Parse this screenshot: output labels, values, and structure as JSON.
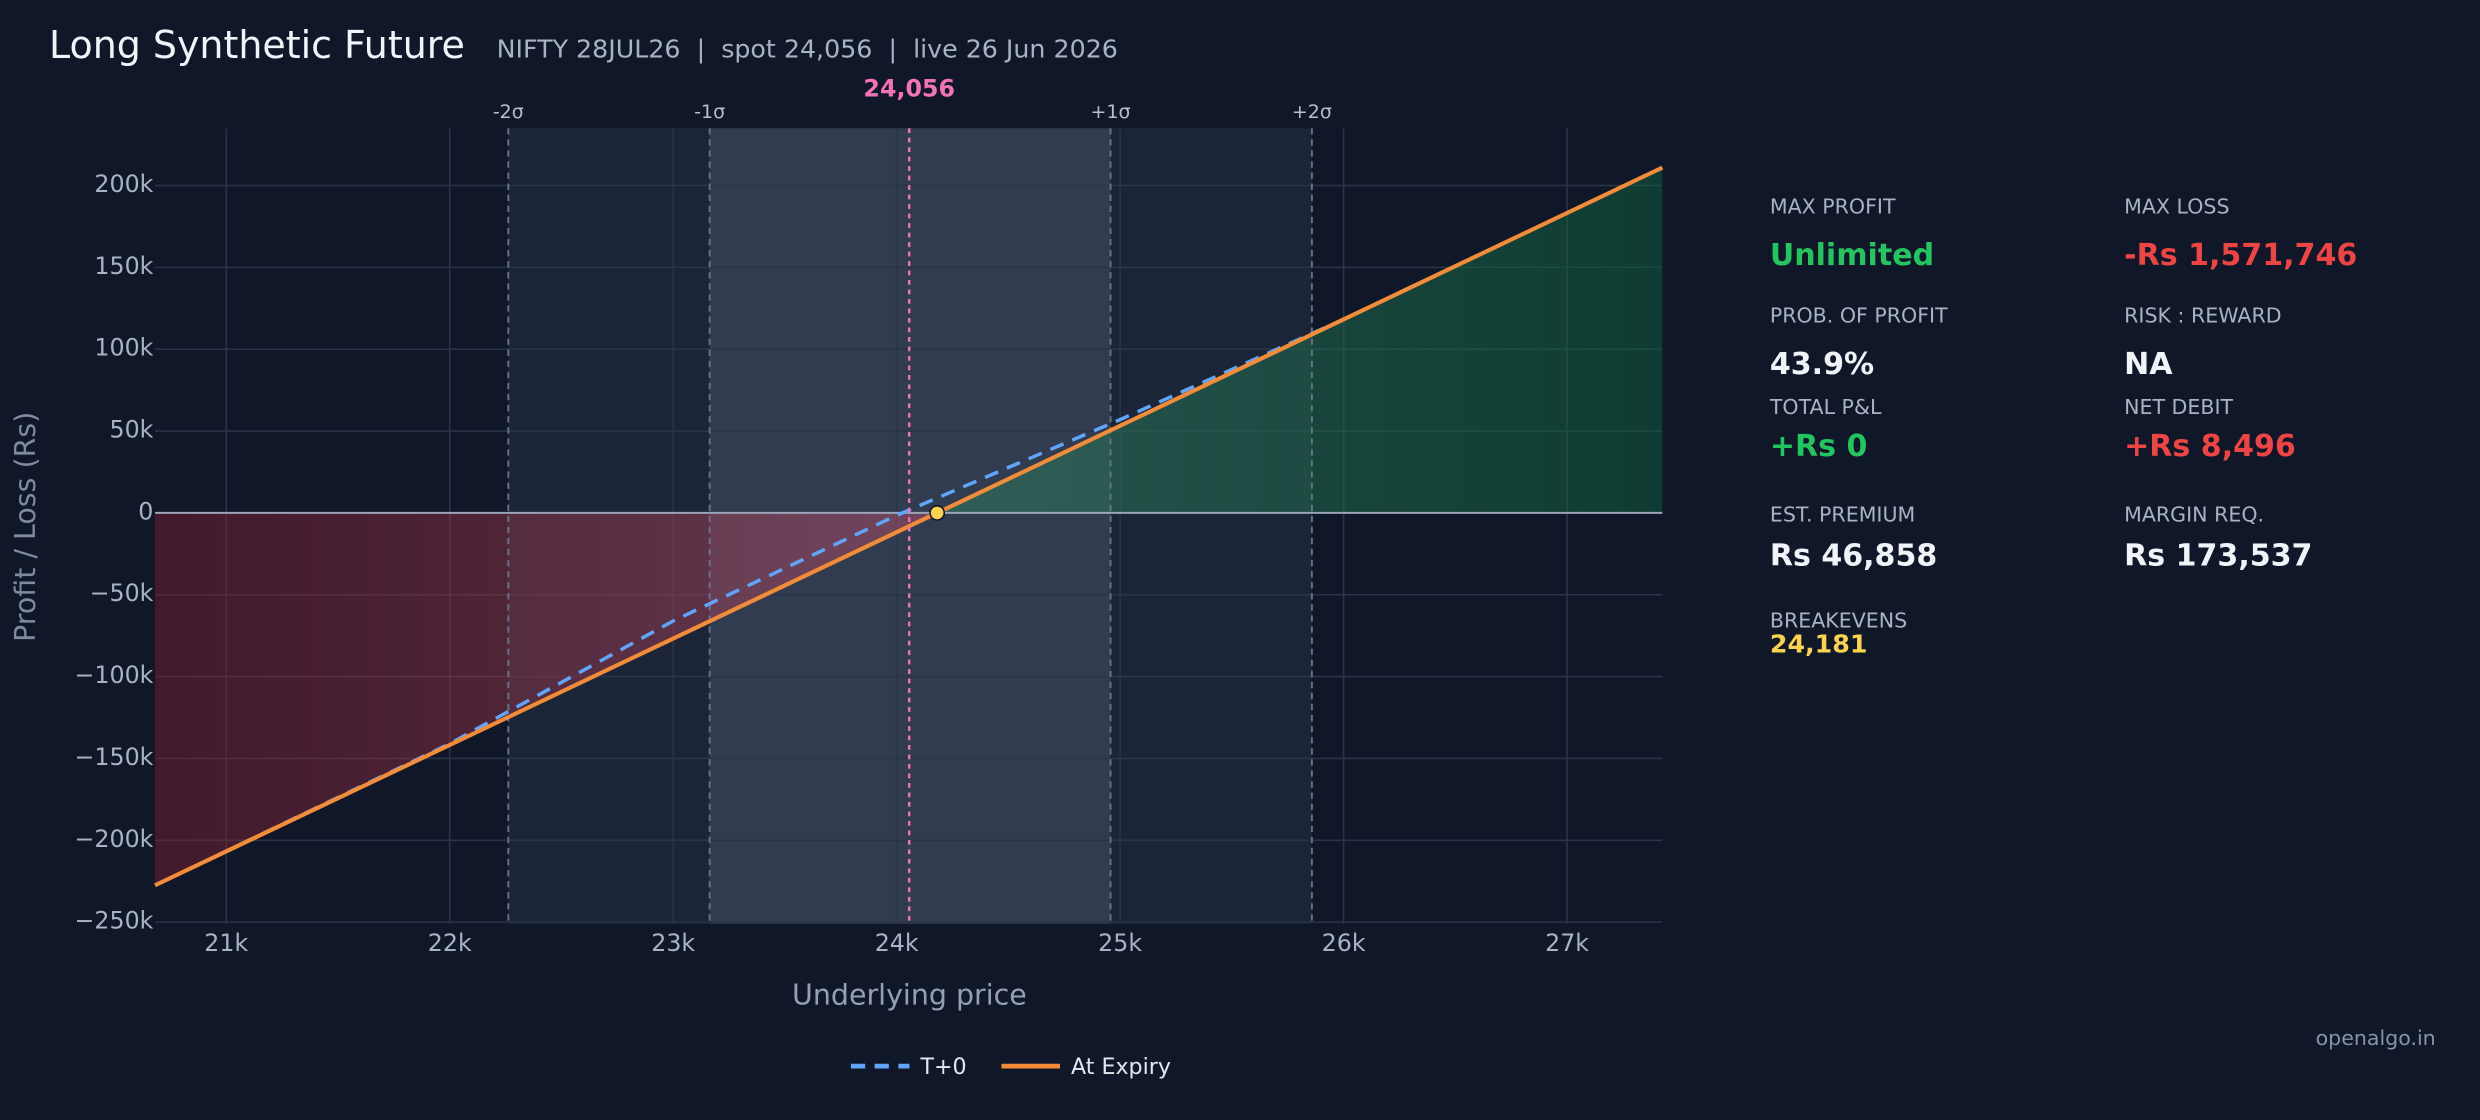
{
  "chart_data": {
    "type": "line",
    "title": "Long Synthetic Future",
    "subtitle": "NIFTY 28JUL26  |  spot 24,056  |  live 26 Jun 2026",
    "x_label": "Underlying price",
    "y_label": "Profit / Loss (Rs)",
    "xlim": [
      20681,
      27426
    ],
    "ylim": [
      -251000,
      235000
    ],
    "xticks": [
      {
        "value": 21000,
        "label": "21k"
      },
      {
        "value": 22000,
        "label": "22k"
      },
      {
        "value": 23000,
        "label": "23k"
      },
      {
        "value": 24000,
        "label": "24k"
      },
      {
        "value": 25000,
        "label": "25k"
      },
      {
        "value": 26000,
        "label": "26k"
      },
      {
        "value": 27000,
        "label": "27k"
      }
    ],
    "yticks": [
      {
        "value": -250000,
        "label": "−250k"
      },
      {
        "value": -200000,
        "label": "−200k"
      },
      {
        "value": -150000,
        "label": "−150k"
      },
      {
        "value": -100000,
        "label": "−100k"
      },
      {
        "value": -50000,
        "label": "−50k"
      },
      0,
      {
        "value": 50000,
        "label": "50k"
      },
      {
        "value": 100000,
        "label": "100k"
      },
      {
        "value": 150000,
        "label": "150k"
      },
      {
        "value": 200000,
        "label": "200k"
      }
    ],
    "grid": true,
    "legend": "bottom",
    "series": [
      {
        "name": "T+0",
        "color": "#60a5fa",
        "dashed": true,
        "x": [
          20681,
          22000,
          23000,
          24000,
          25000,
          26000,
          27426
        ],
        "values": [
          -227500,
          -141000,
          -66000,
          -1500,
          57000,
          118300,
          210925
        ]
      },
      {
        "name": "At Expiry",
        "color": "#f28c38",
        "dashed": false,
        "x": [
          20681,
          24181,
          27426
        ],
        "values": [
          -227500,
          0,
          210925
        ]
      }
    ],
    "spot": {
      "value": 24056,
      "label": "24,056"
    },
    "sigma_lines": [
      {
        "value": 22262,
        "label": "-2σ"
      },
      {
        "value": 23163,
        "label": "-1σ"
      },
      {
        "value": 24957,
        "label": "+1σ"
      },
      {
        "value": 25858,
        "label": "+2σ"
      }
    ],
    "breakeven": 24181
  },
  "metrics": [
    {
      "label": "MAX PROFIT",
      "value": "Unlimited",
      "color": "#22c55e"
    },
    {
      "label": "MAX LOSS",
      "value": "-Rs 1,571,746",
      "color": "#ef4444"
    },
    {
      "label": "PROB. OF PROFIT",
      "value": "43.9%",
      "color": "#f1f5f9"
    },
    {
      "label": "RISK : REWARD",
      "value": "NA",
      "color": "#f1f5f9"
    },
    {
      "label": "TOTAL P&L",
      "value": "+Rs 0",
      "color": "#22c55e"
    },
    {
      "label": "NET DEBIT",
      "value": "+Rs 8,496",
      "color": "#ef4444"
    },
    {
      "label": "EST. PREMIUM",
      "value": "Rs 46,858",
      "color": "#f1f5f9"
    },
    {
      "label": "MARGIN REQ.",
      "value": "Rs 173,537",
      "color": "#f1f5f9"
    }
  ],
  "breakevens": {
    "label": "BREAKEVENS",
    "value": "24,181"
  },
  "footer": "openalgo.in"
}
